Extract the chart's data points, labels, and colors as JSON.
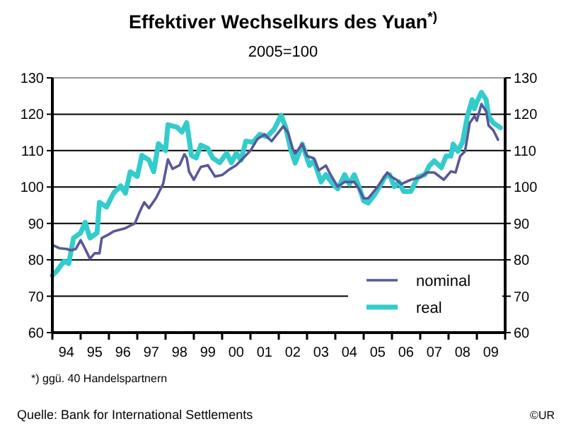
{
  "chart_data": {
    "type": "line",
    "title": "Effektiver Wechselkurs des Yuan$^{*)}$",
    "subtitle": "2005=100",
    "annotations": [
      "*) ggü. 40 Handelspartnern",
      "Quelle: Bank for International Settlements",
      "©UR"
    ],
    "xlim": [
      "1994-01-01",
      "2010-01-01"
    ],
    "xticks": [
      {
        "value": "1994-01-01",
        "label": null
      },
      {
        "value": "1994-07-01",
        "label": "94"
      },
      {
        "value": "1995-01-01",
        "label": null
      },
      {
        "value": "1995-07-01",
        "label": "95"
      },
      {
        "value": "1996-01-01",
        "label": null
      },
      {
        "value": "1996-07-01",
        "label": "96"
      },
      {
        "value": "1997-01-01",
        "label": null
      },
      {
        "value": "1997-07-01",
        "label": "97"
      },
      {
        "value": "1998-01-01",
        "label": null
      },
      {
        "value": "1998-07-01",
        "label": "98"
      },
      {
        "value": "1999-01-01",
        "label": null
      },
      {
        "value": "1999-07-01",
        "label": "99"
      },
      {
        "value": "2000-01-01",
        "label": null
      },
      {
        "value": "2000-07-01",
        "label": "00"
      },
      {
        "value": "2001-01-01",
        "label": null
      },
      {
        "value": "2001-07-01",
        "label": "01"
      },
      {
        "value": "2002-01-01",
        "label": null
      },
      {
        "value": "2002-07-01",
        "label": "02"
      },
      {
        "value": "2003-01-01",
        "label": null
      },
      {
        "value": "2003-07-01",
        "label": "03"
      },
      {
        "value": "2004-01-01",
        "label": null
      },
      {
        "value": "2004-07-01",
        "label": "04"
      },
      {
        "value": "2005-01-01",
        "label": null
      },
      {
        "value": "2005-07-01",
        "label": "05"
      },
      {
        "value": "2006-01-01",
        "label": null
      },
      {
        "value": "2006-07-01",
        "label": "06"
      },
      {
        "value": "2007-01-01",
        "label": null
      },
      {
        "value": "2007-07-01",
        "label": "07"
      },
      {
        "value": "2008-01-01",
        "label": null
      },
      {
        "value": "2008-07-01",
        "label": "08"
      },
      {
        "value": "2009-01-01",
        "label": null
      },
      {
        "value": "2009-07-01",
        "label": "09"
      },
      {
        "value": "2010-01-01",
        "label": null
      }
    ],
    "ylim": [
      60,
      130
    ],
    "yticks": [
      60,
      70,
      80,
      90,
      100,
      110,
      120,
      130
    ],
    "y2lim": [
      60,
      130
    ],
    "y2ticks": [
      60,
      70,
      80,
      90,
      100,
      110,
      120,
      130
    ],
    "grid": "y",
    "legend": "bottom right",
    "line_style": "solid",
    "marker": "none",
    "series": [
      {
        "name": "nominal",
        "color": "#58589a",
        "x": [
          "1994-01",
          "1994-04",
          "1994-07",
          "1994-09",
          "1994-11",
          "1995-01",
          "1995-03",
          "1995-05",
          "1995-07",
          "1995-09",
          "1995-10",
          "1996-01",
          "1996-03",
          "1996-08",
          "1996-12",
          "1997-02",
          "1997-04",
          "1997-06",
          "1997-09",
          "1997-12",
          "1998-02",
          "1998-04",
          "1998-07",
          "1998-09",
          "1998-10",
          "1998-11",
          "1999-01",
          "1999-04",
          "1999-07",
          "1999-10",
          "2000-01",
          "2000-04",
          "2000-07",
          "2000-10",
          "2001-01",
          "2001-04",
          "2001-07",
          "2001-10",
          "2002-01",
          "2002-03",
          "2002-05",
          "2002-07",
          "2002-08",
          "2002-11",
          "2003-01",
          "2003-04",
          "2003-06",
          "2003-09",
          "2003-11",
          "2004-02",
          "2004-05",
          "2004-09",
          "2004-11",
          "2005-01",
          "2005-03",
          "2005-07",
          "2005-11",
          "2006-01",
          "2006-03",
          "2006-05",
          "2006-09",
          "2007-01",
          "2007-04",
          "2007-07",
          "2007-11",
          "2008-02",
          "2008-04",
          "2008-06",
          "2008-08",
          "2008-10",
          "2008-12",
          "2009-01",
          "2009-03",
          "2009-05",
          "2009-06",
          "2009-08",
          "2009-10"
        ],
        "values": [
          84.1,
          83.2,
          83,
          82.6,
          83,
          85.4,
          83,
          80.3,
          81.8,
          81.8,
          86,
          87,
          87.8,
          88.7,
          90,
          93.2,
          95.8,
          94.2,
          97,
          100.9,
          107.6,
          105,
          106,
          109,
          108,
          104.2,
          102,
          105.5,
          106,
          102.9,
          103.3,
          104.8,
          106,
          108,
          110,
          113.2,
          114.5,
          112.6,
          115.1,
          116.7,
          115,
          110.5,
          109.2,
          111.8,
          108.5,
          107.9,
          104.6,
          105.9,
          103.4,
          100.1,
          101.4,
          101.4,
          99.5,
          96.9,
          96.9,
          100.1,
          104,
          102.7,
          102,
          100.8,
          102,
          102.7,
          104,
          104,
          102,
          104.3,
          104,
          108.5,
          109.8,
          117.6,
          119.5,
          118.2,
          122.8,
          120.8,
          116.9,
          115.6,
          113
        ]
      },
      {
        "name": "real",
        "color": "#33cccc",
        "x": [
          "1994-01",
          "1994-03",
          "1994-06",
          "1994-08",
          "1994-10",
          "1995-01",
          "1995-03",
          "1995-05",
          "1995-08",
          "1995-09",
          "1995-12",
          "1996-03",
          "1996-06",
          "1996-08",
          "1996-10",
          "1997-01",
          "1997-03",
          "1997-06",
          "1997-08",
          "1997-10",
          "1998-01",
          "1998-02",
          "1998-06",
          "1998-08",
          "1998-10",
          "1998-12",
          "1999-02",
          "1999-04",
          "1999-07",
          "1999-09",
          "1999-12",
          "2000-03",
          "2000-05",
          "2000-07",
          "2000-09",
          "2000-11",
          "2001-02",
          "2001-05",
          "2001-08",
          "2001-11",
          "2002-02",
          "2002-04",
          "2002-06",
          "2002-08",
          "2002-11",
          "2003-02",
          "2003-04",
          "2003-07",
          "2003-09",
          "2003-12",
          "2004-02",
          "2004-05",
          "2004-07",
          "2004-09",
          "2004-11",
          "2005-01",
          "2005-03",
          "2005-06",
          "2005-10",
          "2005-12",
          "2006-02",
          "2006-04",
          "2006-06",
          "2006-09",
          "2006-12",
          "2007-03",
          "2007-05",
          "2007-07",
          "2007-10",
          "2007-12",
          "2008-02",
          "2008-03",
          "2008-05",
          "2008-07",
          "2008-09",
          "2008-11",
          "2008-12",
          "2009-01",
          "2009-03",
          "2009-05",
          "2009-06",
          "2009-08",
          "2009-11"
        ],
        "values": [
          75.7,
          77,
          79.6,
          79,
          86,
          87.4,
          90.3,
          86,
          87.4,
          95.8,
          94.5,
          98.3,
          100.3,
          98.3,
          104.2,
          102.9,
          108.7,
          107.4,
          104.2,
          111.9,
          110,
          117.1,
          116.4,
          115.1,
          117.7,
          108.7,
          108,
          111.5,
          110.6,
          108,
          106.7,
          109.3,
          106.7,
          109.3,
          107.4,
          112.6,
          112.3,
          114.5,
          113.8,
          115.8,
          119.7,
          116.4,
          110.6,
          106.6,
          111.8,
          105.9,
          107.2,
          101.4,
          103.4,
          100.8,
          99.5,
          103.4,
          100.8,
          103.4,
          100.1,
          96.2,
          95.6,
          98.2,
          102.7,
          103.4,
          100.1,
          101.4,
          98.8,
          98.8,
          102.7,
          103.4,
          105.9,
          107.2,
          105.3,
          108.5,
          108.5,
          111.8,
          109.8,
          112.4,
          119.5,
          124,
          121.5,
          123.4,
          126,
          124,
          119.5,
          117.6,
          116.3
        ]
      }
    ]
  }
}
